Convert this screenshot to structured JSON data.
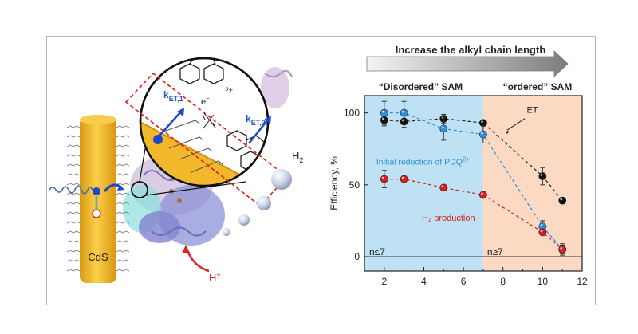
{
  "scheme": {
    "cds_label": "CdS",
    "ket1_main": "k",
    "ket1_sub": "ET,1",
    "ket2_main": "k",
    "ket2_sub": "ET,2",
    "electron_label": "e",
    "electron_sup": "−",
    "charge_2plus": "2+",
    "charge_plus": "+•",
    "h2_main": "H",
    "h2_sub": "2",
    "proton_main": "H",
    "proton_sup": "+",
    "chain_label": "n",
    "colors": {
      "cds": "#f2b82c",
      "arrow_blue": "#1f5fd6",
      "red_dash": "#e0201b",
      "protein_blue": "#6b6fc4",
      "protein_cyan": "#66d1d1",
      "protein_purple": "#9a7ab5"
    }
  },
  "banner": {
    "text": "Increase the alkyl chain length"
  },
  "chart_data": {
    "type": "scatter",
    "xlim": [
      1,
      12
    ],
    "ylim": [
      -10,
      112
    ],
    "xticks": [
      2,
      4,
      6,
      8,
      10,
      12
    ],
    "yticks": [
      0,
      50,
      100
    ],
    "ylabel": "Efficiency, %",
    "xlabel": "",
    "regions": [
      {
        "label": "“Disordered” SAM",
        "from": 1,
        "to": 7,
        "color": "#bfe1f4",
        "note": "n≤7"
      },
      {
        "label": "“ordered” SAM",
        "from": 7,
        "to": 12,
        "color": "#fbd9c2",
        "note": "n≥7"
      }
    ],
    "series": [
      {
        "key": "et",
        "color": "#111111",
        "line": "black",
        "x": [
          2,
          3,
          5,
          7,
          10,
          11
        ],
        "y": [
          95,
          94,
          96,
          93,
          56,
          39
        ],
        "err": [
          4,
          4,
          3,
          2,
          6,
          2
        ]
      },
      {
        "key": "reduction",
        "color": "#2f8fde",
        "line": "blue",
        "x": [
          2,
          3,
          5,
          7,
          10,
          11
        ],
        "y": [
          100,
          100,
          89,
          85,
          21,
          5
        ],
        "err": [
          8,
          8,
          8,
          6,
          4,
          4
        ]
      },
      {
        "key": "h2",
        "color": "#d81e1e",
        "line": "red",
        "x": [
          2,
          3,
          5,
          7,
          10,
          11
        ],
        "y": [
          54,
          54,
          48,
          43,
          17,
          5
        ],
        "err": [
          6,
          2,
          2,
          2,
          2,
          3
        ]
      }
    ],
    "annotations": {
      "et": "ET",
      "reduction_main": "Initial reduction of PDQ",
      "reduction_sup": "2+",
      "h2": "H₂ production"
    }
  }
}
